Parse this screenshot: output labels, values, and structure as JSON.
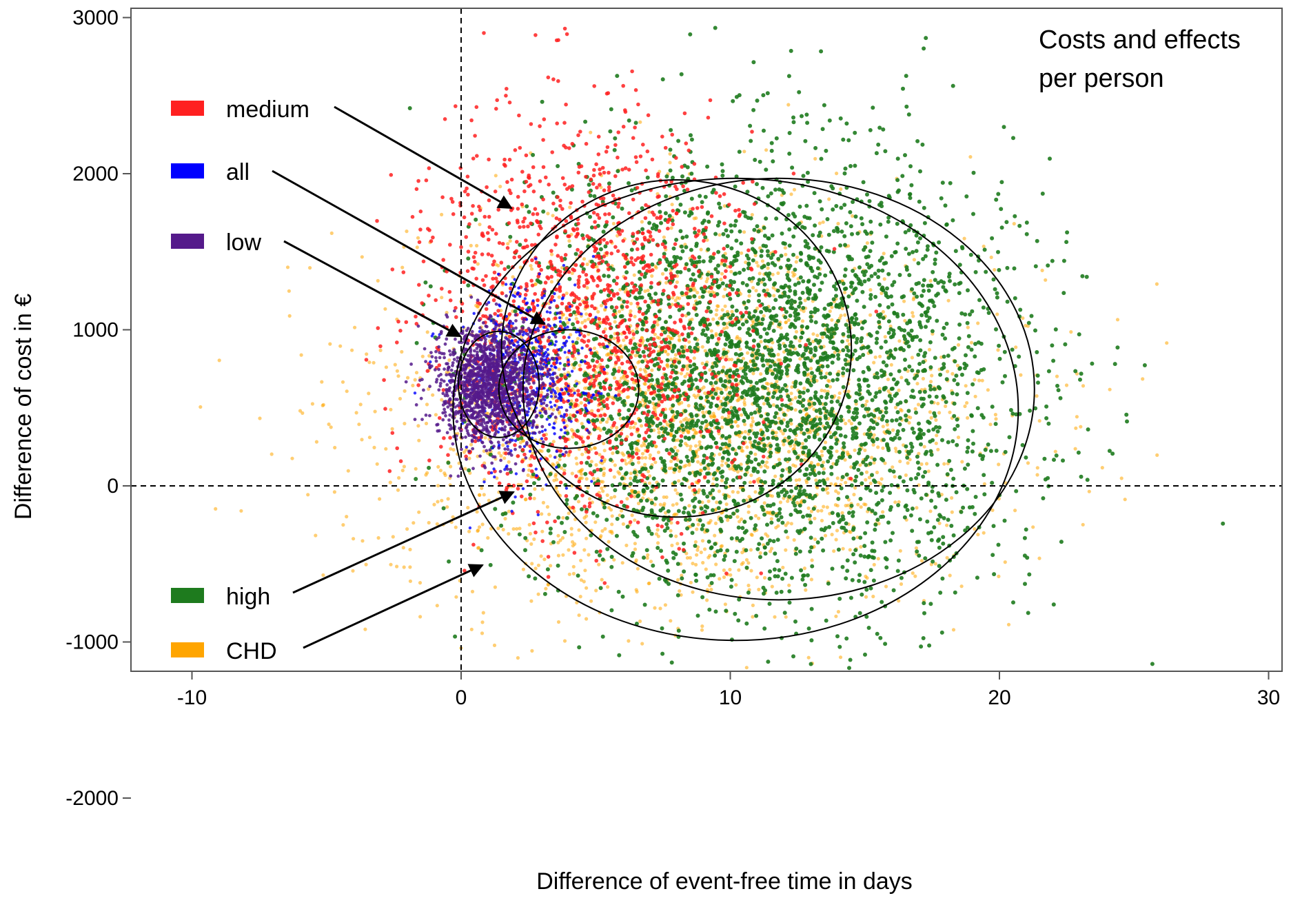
{
  "chart_data": {
    "type": "scatter",
    "title": "",
    "annotation": [
      "Costs and effects",
      "per person"
    ],
    "xlabel": "Difference of event-free time in days",
    "ylabel": "Difference of cost in €",
    "xlim": [
      -11,
      30
    ],
    "ylim": [
      -2000,
      3000
    ],
    "xticks": [
      "-10",
      "0",
      "10",
      "20",
      "30"
    ],
    "yticks": [
      "3000",
      "2000",
      "1000",
      "0",
      "-1000",
      "-2000"
    ],
    "reference_lines": {
      "x": 0,
      "y": 0,
      "style": "dashed"
    },
    "grid": false,
    "series": [
      {
        "name": "CHD",
        "color": "#FFA500",
        "center": [
          8.5,
          450
        ],
        "spread": [
          5.5,
          600
        ]
      },
      {
        "name": "high",
        "color": "#1E7B1E",
        "center": [
          11.5,
          700
        ],
        "spread": [
          4.5,
          700
        ]
      },
      {
        "name": "medium",
        "color": "#FF2020",
        "center": [
          4.5,
          1100
        ],
        "spread": [
          3.0,
          600
        ]
      },
      {
        "name": "all",
        "color": "#0000FF",
        "center": [
          2.5,
          700
        ],
        "spread": [
          1.2,
          300
        ]
      },
      {
        "name": "low",
        "color": "#551A8B",
        "center": [
          1.0,
          650
        ],
        "spread": [
          1.0,
          200
        ]
      }
    ],
    "legend": [
      {
        "label": "medium",
        "color": "#FF2020"
      },
      {
        "label": "all",
        "color": "#0000FF"
      },
      {
        "label": "low",
        "color": "#551A8B"
      },
      {
        "label": "high",
        "color": "#1E7B1E"
      },
      {
        "label": "CHD",
        "color": "#FFA500"
      }
    ],
    "ellipses": [
      {
        "name": "CHD",
        "cx": 10.2,
        "cy": 490,
        "rx": 10.5,
        "ry": 1480,
        "angle": 0
      },
      {
        "name": "high",
        "cx": 11.8,
        "cy": 620,
        "rx": 9.5,
        "ry": 1350,
        "angle": 0
      },
      {
        "name": "medium",
        "cx": 8.0,
        "cy": 880,
        "rx": 6.5,
        "ry": 1080,
        "angle": 0
      },
      {
        "name": "all",
        "cx": 4.0,
        "cy": 620,
        "rx": 2.6,
        "ry": 380,
        "angle": 0
      },
      {
        "name": "low",
        "cx": 1.4,
        "cy": 650,
        "rx": 1.5,
        "ry": 340,
        "angle": 0
      }
    ]
  }
}
